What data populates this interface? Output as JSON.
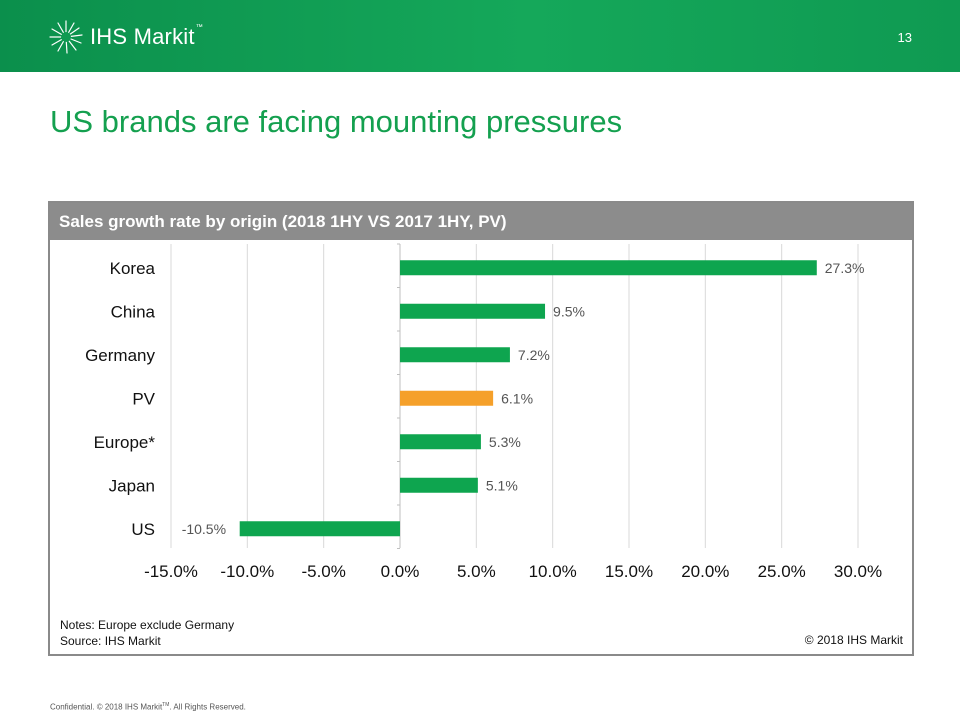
{
  "header": {
    "logo_text": "IHS Markit",
    "logo_tm": "™",
    "page_number": "13"
  },
  "title": "US brands are facing mounting pressures",
  "panel": {
    "title": "Sales growth rate by origin (2018 1HY VS 2017 1HY, PV)",
    "notes": "Notes: Europe exclude Germany",
    "source": "Source: IHS Markit",
    "copyright": "© 2018 IHS Markit"
  },
  "footer": {
    "prefix": "Confidential. © 2018 IHS Markit",
    "tm": "TM",
    "suffix": ". All Rights Reserved."
  },
  "colors": {
    "header_green": "#0f9a52",
    "title_green": "#14a04f",
    "bar_green": "#0ea54f",
    "bar_highlight": "#f5a02a",
    "panel_gray": "#8c8c8c"
  },
  "chart_data": {
    "type": "bar",
    "orientation": "horizontal",
    "categories": [
      "Korea",
      "China",
      "Germany",
      "PV",
      "Europe*",
      "Japan",
      "US"
    ],
    "values": [
      27.3,
      9.5,
      7.2,
      6.1,
      5.3,
      5.1,
      -10.5
    ],
    "data_labels": [
      "27.3%",
      "9.5%",
      "7.2%",
      "6.1%",
      "5.3%",
      "5.1%",
      "-10.5%"
    ],
    "highlight_category": "PV",
    "xlim": [
      -15,
      30
    ],
    "x_ticks": [
      -15,
      -10,
      -5,
      0,
      5,
      10,
      15,
      20,
      25,
      30
    ],
    "x_tick_labels": [
      "-15.0%",
      "-10.0%",
      "-5.0%",
      "0.0%",
      "5.0%",
      "10.0%",
      "15.0%",
      "20.0%",
      "25.0%",
      "30.0%"
    ],
    "grid": "vertical",
    "legend": "none"
  }
}
